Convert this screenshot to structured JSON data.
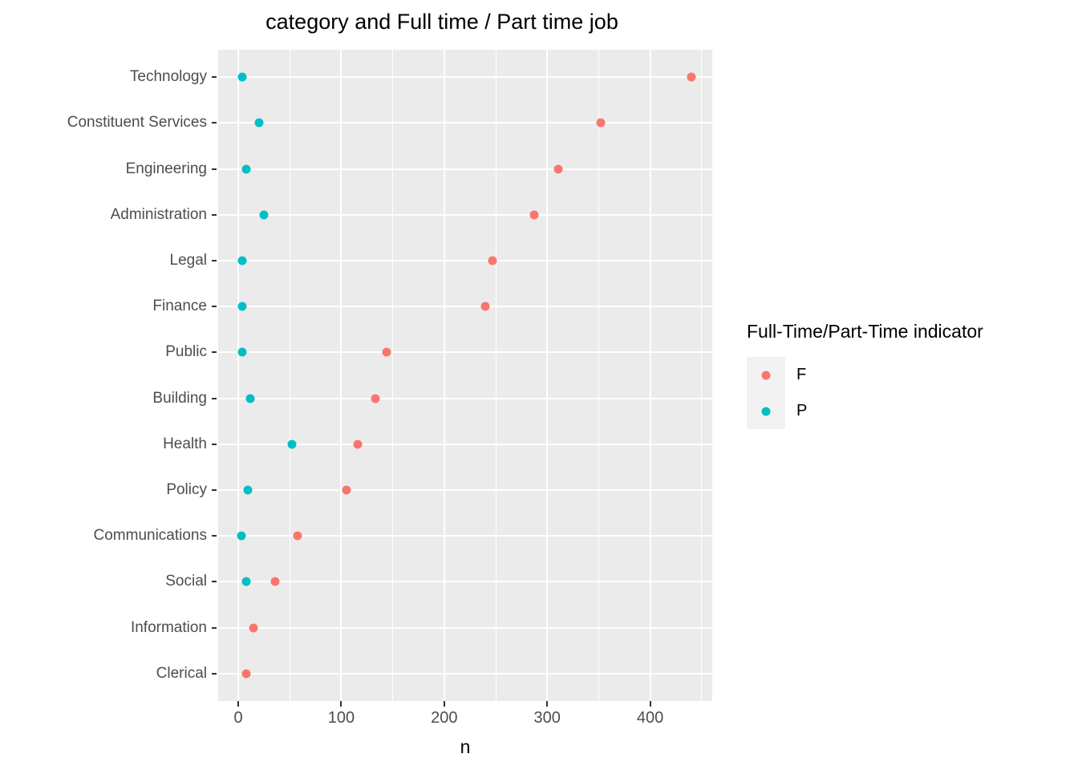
{
  "title": "category and Full time / Part time job",
  "x_axis": {
    "label": "n",
    "major_ticks": [
      0,
      100,
      200,
      300,
      400
    ],
    "minor_ticks": [
      50,
      150,
      250,
      350,
      450
    ]
  },
  "legend": {
    "title": "Full-Time/Part-Time indicator",
    "entries": [
      {
        "label": "F",
        "color": "#F8766D"
      },
      {
        "label": "P",
        "color": "#00BFC4"
      }
    ]
  },
  "colors": {
    "panel_background": "#EBEBEB",
    "gridline": "#FFFFFF",
    "axis_text": "#4D4D4D",
    "tick_mark": "#333333",
    "series_f": "#F8766D",
    "series_p": "#00BFC4",
    "legend_key_background": "#F2F2F2"
  },
  "chart_data": {
    "type": "scatter",
    "orientation": "horizontal",
    "title": "category and Full time / Part time job",
    "xlabel": "n",
    "ylabel": "category",
    "xlim": [
      -19.5,
      460.3
    ],
    "grid": true,
    "legend_position": "right",
    "legend_title": "Full-Time/Part-Time indicator",
    "categories": [
      "Technology",
      "Constituent Services",
      "Engineering",
      "Administration",
      "Legal",
      "Finance",
      "Public",
      "Building",
      "Health",
      "Policy",
      "Communications",
      "Social",
      "Information",
      "Clerical"
    ],
    "series": [
      {
        "name": "F",
        "color": "#F8766D",
        "values": [
          440,
          352,
          311,
          287,
          247,
          240,
          144,
          133,
          116,
          105,
          58,
          36,
          15,
          8
        ]
      },
      {
        "name": "P",
        "color": "#00BFC4",
        "values": [
          4,
          20,
          8,
          25,
          4,
          4,
          4,
          12,
          52,
          9,
          3,
          8,
          null,
          null
        ]
      }
    ]
  }
}
